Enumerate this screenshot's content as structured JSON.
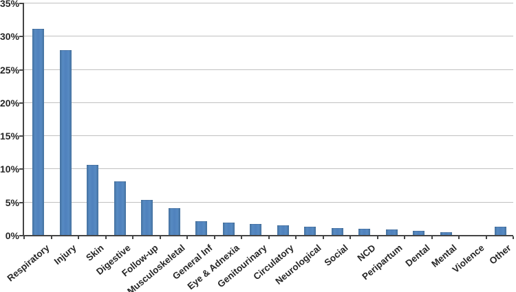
{
  "chart_data": {
    "type": "bar",
    "title": "",
    "xlabel": "",
    "ylabel": "",
    "categories": [
      "Respiratory",
      "Injury",
      "Skin",
      "Digestive",
      "Follow-up",
      "Musculoskeletal",
      "General Inf",
      "Eye & Adnexia",
      "Genitourinary",
      "Circulatory",
      "Neurological",
      "Social",
      "NCD",
      "Peripartum",
      "Dental",
      "Mental",
      "Violence",
      "Other"
    ],
    "values": [
      31.1,
      27.9,
      10.6,
      8.1,
      5.3,
      4.0,
      2.1,
      1.9,
      1.7,
      1.4,
      1.2,
      1.0,
      0.9,
      0.8,
      0.6,
      0.4,
      0.05,
      1.2
    ],
    "value_unit": "%",
    "ylim": [
      0,
      35
    ],
    "yticks": [
      0,
      5,
      10,
      15,
      20,
      25,
      30,
      35
    ],
    "ytick_labels": [
      "0%",
      "5%",
      "10%",
      "15%",
      "20%",
      "25%",
      "30%",
      "35%"
    ],
    "grid": true,
    "legend": false,
    "legend_position": "none"
  },
  "colors": {
    "bar_fill": "#4f81bd",
    "bar_edge": "#43709e",
    "bar_highlight": "#578ac2",
    "gridline": "#c0c0c0",
    "axis": "#444444",
    "tick": "#444444",
    "label_text": "#262626",
    "background": "#ffffff"
  }
}
